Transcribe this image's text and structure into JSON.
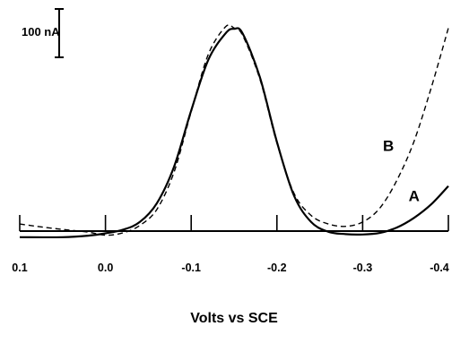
{
  "chart_data": {
    "type": "line",
    "xlabel": "Volts vs SCE",
    "x_ticks": [
      {
        "value": 0.1,
        "label": "0.1"
      },
      {
        "value": 0.0,
        "label": "0.0"
      },
      {
        "value": -0.1,
        "label": "-0.1"
      },
      {
        "value": -0.2,
        "label": "-0.2"
      },
      {
        "value": -0.3,
        "label": "-0.3"
      },
      {
        "value": -0.4,
        "label": "-0.4"
      }
    ],
    "xlim": [
      0.1,
      -0.4
    ],
    "y_units": "nA",
    "ylim": [
      0,
      555
    ],
    "scale_bar": {
      "value": 100,
      "label": "100 nA"
    },
    "series": [
      {
        "name": "A",
        "style": "solid",
        "points": [
          [
            0.1,
            12
          ],
          [
            0.05,
            12
          ],
          [
            0.02,
            16
          ],
          [
            0.0,
            22
          ],
          [
            -0.02,
            31
          ],
          [
            -0.04,
            51
          ],
          [
            -0.06,
            100
          ],
          [
            -0.08,
            194
          ],
          [
            -0.1,
            339
          ],
          [
            -0.12,
            470
          ],
          [
            -0.14,
            538
          ],
          [
            -0.15,
            550
          ],
          [
            -0.16,
            538
          ],
          [
            -0.18,
            426
          ],
          [
            -0.2,
            258
          ],
          [
            -0.22,
            119
          ],
          [
            -0.24,
            51
          ],
          [
            -0.26,
            26
          ],
          [
            -0.28,
            20
          ],
          [
            -0.3,
            19
          ],
          [
            -0.32,
            23
          ],
          [
            -0.34,
            37
          ],
          [
            -0.36,
            62
          ],
          [
            -0.38,
            97
          ],
          [
            -0.4,
            144
          ]
        ]
      },
      {
        "name": "B",
        "style": "dashed",
        "points": [
          [
            0.1,
            46
          ],
          [
            0.08,
            40
          ],
          [
            0.05,
            32
          ],
          [
            0.02,
            25
          ],
          [
            0.0,
            17
          ],
          [
            -0.02,
            23
          ],
          [
            -0.04,
            42
          ],
          [
            -0.06,
            84
          ],
          [
            -0.08,
            180
          ],
          [
            -0.1,
            336
          ],
          [
            -0.12,
            484
          ],
          [
            -0.14,
            555
          ],
          [
            -0.15,
            552
          ],
          [
            -0.16,
            533
          ],
          [
            -0.18,
            421
          ],
          [
            -0.2,
            255
          ],
          [
            -0.22,
            125
          ],
          [
            -0.24,
            68
          ],
          [
            -0.26,
            46
          ],
          [
            -0.28,
            40
          ],
          [
            -0.3,
            51
          ],
          [
            -0.32,
            87
          ],
          [
            -0.34,
            159
          ],
          [
            -0.36,
            260
          ],
          [
            -0.38,
            398
          ],
          [
            -0.4,
            552
          ]
        ]
      }
    ],
    "annotations": [
      {
        "text": "A",
        "x": -0.36,
        "y": 105
      },
      {
        "text": "B",
        "x": -0.33,
        "y": 235
      }
    ],
    "grid": false,
    "legend": "none"
  }
}
